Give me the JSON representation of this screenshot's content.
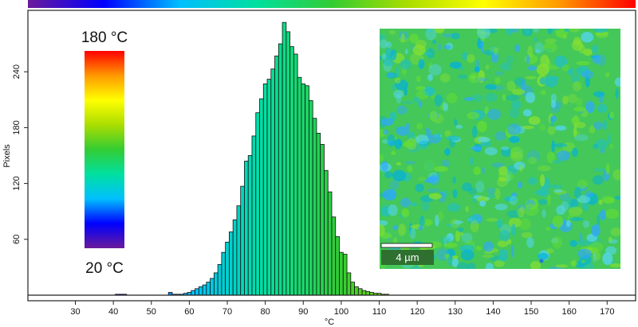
{
  "chart_data": {
    "type": "bar",
    "xlabel": "°C",
    "ylabel": "Pixels",
    "xlim": [
      17.5,
      177.5
    ],
    "ylim": [
      0,
      300
    ],
    "x_ticks": [
      30,
      40,
      50,
      60,
      70,
      80,
      90,
      100,
      110,
      120,
      130,
      140,
      150,
      160,
      170
    ],
    "y_ticks": [
      60,
      120,
      180,
      240
    ],
    "bin_width": 1,
    "bins": [
      {
        "x": 41,
        "y": 1
      },
      {
        "x": 42,
        "y": 1
      },
      {
        "x": 43,
        "y": 1
      },
      {
        "x": 55,
        "y": 3
      },
      {
        "x": 56,
        "y": 1
      },
      {
        "x": 57,
        "y": 1
      },
      {
        "x": 58,
        "y": 1
      },
      {
        "x": 59,
        "y": 2
      },
      {
        "x": 60,
        "y": 3
      },
      {
        "x": 61,
        "y": 5
      },
      {
        "x": 62,
        "y": 7
      },
      {
        "x": 63,
        "y": 9
      },
      {
        "x": 64,
        "y": 11
      },
      {
        "x": 65,
        "y": 14
      },
      {
        "x": 66,
        "y": 18
      },
      {
        "x": 67,
        "y": 24
      },
      {
        "x": 68,
        "y": 33
      },
      {
        "x": 69,
        "y": 46
      },
      {
        "x": 70,
        "y": 57
      },
      {
        "x": 71,
        "y": 68
      },
      {
        "x": 72,
        "y": 81
      },
      {
        "x": 73,
        "y": 96
      },
      {
        "x": 74,
        "y": 117
      },
      {
        "x": 75,
        "y": 144
      },
      {
        "x": 76,
        "y": 150
      },
      {
        "x": 77,
        "y": 171
      },
      {
        "x": 78,
        "y": 196
      },
      {
        "x": 79,
        "y": 211
      },
      {
        "x": 80,
        "y": 227
      },
      {
        "x": 81,
        "y": 232
      },
      {
        "x": 82,
        "y": 243
      },
      {
        "x": 83,
        "y": 257
      },
      {
        "x": 84,
        "y": 270
      },
      {
        "x": 85,
        "y": 293
      },
      {
        "x": 86,
        "y": 283
      },
      {
        "x": 87,
        "y": 267
      },
      {
        "x": 88,
        "y": 259
      },
      {
        "x": 89,
        "y": 234
      },
      {
        "x": 90,
        "y": 227
      },
      {
        "x": 91,
        "y": 225
      },
      {
        "x": 92,
        "y": 209
      },
      {
        "x": 93,
        "y": 190
      },
      {
        "x": 94,
        "y": 174
      },
      {
        "x": 95,
        "y": 162
      },
      {
        "x": 96,
        "y": 134
      },
      {
        "x": 97,
        "y": 111
      },
      {
        "x": 98,
        "y": 84
      },
      {
        "x": 99,
        "y": 63
      },
      {
        "x": 100,
        "y": 46
      },
      {
        "x": 101,
        "y": 44
      },
      {
        "x": 102,
        "y": 24
      },
      {
        "x": 103,
        "y": 14
      },
      {
        "x": 104,
        "y": 9
      },
      {
        "x": 105,
        "y": 7
      },
      {
        "x": 106,
        "y": 5
      },
      {
        "x": 107,
        "y": 4
      },
      {
        "x": 108,
        "y": 3
      },
      {
        "x": 109,
        "y": 2
      },
      {
        "x": 110,
        "y": 2
      },
      {
        "x": 111,
        "y": 1
      },
      {
        "x": 112,
        "y": 1
      }
    ],
    "color_scale": {
      "min_label": "20 °C",
      "max_label": "180 °C",
      "min": 20,
      "max": 180,
      "stops": [
        "#6a1b9a",
        "#0000ff",
        "#00bfff",
        "#00e0a0",
        "#33cc33",
        "#aadd00",
        "#ffff00",
        "#ff9900",
        "#ff0000"
      ]
    },
    "grid": false,
    "legend": "none"
  },
  "inset": {
    "scale_bar_label": "4 µm",
    "base_color": "#44c85a",
    "patch_colors": [
      "#2fa8ff",
      "#55d6f0",
      "#00b0e0",
      "#66dd33",
      "#88e030",
      "#22c0c0",
      "#1f6fd8"
    ]
  }
}
